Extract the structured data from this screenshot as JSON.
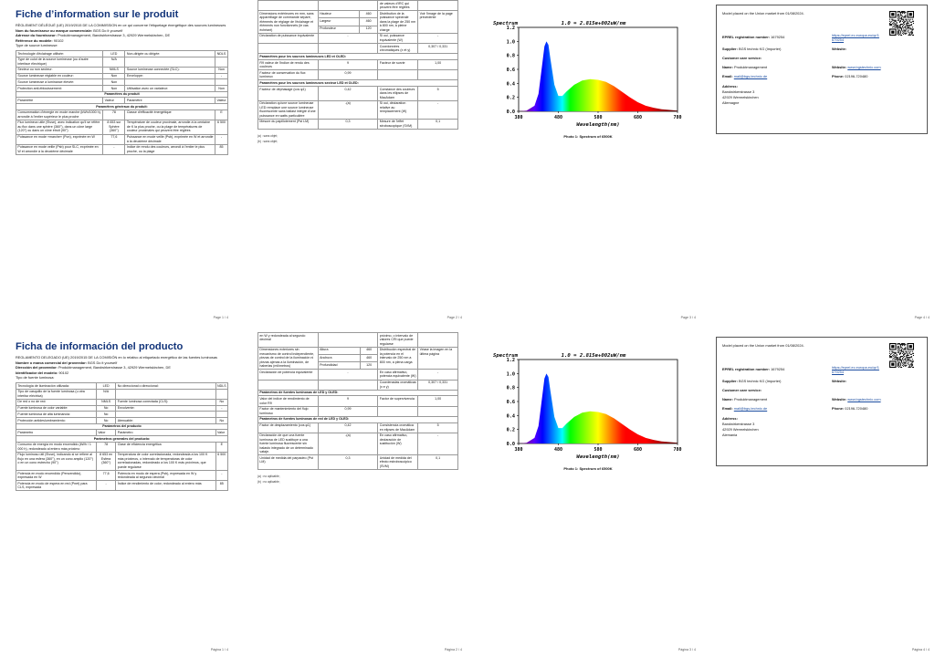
{
  "fr": {
    "p1": {
      "title": "Fiche d’information sur le produit",
      "regulation": "RÈGLEMENT DÉLÉGUÉ (UE) 2019/2015 DE LA COMMISSION en ce qui concerne l'étiquetage énergétique des sources lumineuses",
      "supplier_label": "Nom du fournisseur ou marque commerciale:",
      "supplier_value": "BGS Do it yourself",
      "address_label": "Adresse du fournisseur:",
      "address_value": "Produktmanagement, Bandwirkerstrasse 3, 42929 Wermelskirchen, DE",
      "model_label": "Référence du modèle:",
      "model_value": "90102",
      "type_heading": "Type de source lumineuse:",
      "rows_type": [
        [
          "Technologie d'éclairage utilisée:",
          "LED",
          "Non-dirigée ou dirigée:",
          "NDLS"
        ],
        [
          "Type de culot de la source lumineuse (ou d'autre interface électrique)",
          "N/A",
          "",
          ""
        ],
        [
          "Secteur ou non secteur:",
          "NMLS",
          "Source lumineuse connectée (SLC):",
          "Non"
        ],
        [
          "Source lumineuse réglable en couleur:",
          "Non",
          "Enveloppe:",
          "-"
        ],
        [
          "Source lumineuse à luminance élevée:",
          "Non",
          "",
          ""
        ],
        [
          "Protection anti-éblouissement:",
          "Non",
          "Utilisation avec un variateur:",
          "Non"
        ]
      ],
      "params_heading": "Paramètres du produit",
      "cols": [
        "Paramètre",
        "Valeur",
        "Paramètre",
        "Valeur"
      ],
      "general_heading": "Paramètres généraux du produit:",
      "rows_general": [
        [
          "Consommation d'énergie en mode marche (kWh/1000 h), arrondie à l'entier supérieur le plus proche",
          "78",
          "Classe d'efficacité énergétique",
          "E"
        ],
        [
          "Flux lumineux utile (Φuse), avec indication qu'il se réfère au flux dans une sphère (360°), dans un cône large (120°) ou dans un cône étroit (90°)",
          "8 653 sur Sphère (360°)",
          "Température de couleur proximale, arrondie à la centaine de K la plus proche, ou la plage de températures de couleur proximales qui peuvent être réglées",
          "6 500"
        ],
        [
          "Puissance en mode «marche» (Pon), exprimée en W",
          "77,6",
          "Puissance en mode veille (Psb), exprimée en W et arrondie à la deuxième décimale",
          "-"
        ],
        [
          "Puissance en mode veille (Psb) pour SLC, exprimée en W et arrondie à la deuxième décimale",
          "-",
          "Indice de rendu des couleurs, arrondi à l'entier le plus proche, ou la plage",
          "85"
        ]
      ],
      "page_no": "Page 1 / 4"
    },
    "p2": {
      "cont_text": "de valeurs d'IRC qui peuvent être réglées",
      "dim_label": "Dimensions extérieures en mm, sans appareillage de commande séparé, éléments de réglage de l'éclairage et éléments non fonctionnels (le cas échéant)",
      "dims": [
        [
          "Hauteur",
          "460"
        ],
        [
          "Largeur",
          "460"
        ],
        [
          "Profondeur",
          "120"
        ]
      ],
      "spec_label": "Distribution de la puissance spectrale dans la plage de 250 nm à 800 nm, à pleine charge",
      "spec_value": "Voir l'image de la page précédente",
      "rows_a": [
        [
          "Déclaration de puissance équivalente",
          "-",
          "Si oui, puissance équivalente (W)",
          "-"
        ],
        [
          "",
          "",
          "Coordonnées chromatiques (x et y)",
          "0,307 / 0,331"
        ]
      ],
      "led_heading": "Paramètres pour les sources lumineuses LED et OLED:",
      "rows_led": [
        [
          "R9 valeur de l'indice de rendu des couleurs",
          "9",
          "Facteur de survie",
          "1,00"
        ],
        [
          "Facteur de conservation du flux lumineux",
          "0,99",
          "",
          ""
        ]
      ],
      "mains_heading": "Paramètres pour les sources lumineuses secteur LED et OLED:",
      "rows_mains": [
        [
          "Facteur de déphasage (cos φ1)",
          "0,42",
          "Constance des couleurs dans les ellipses de MacAdam",
          "5"
        ],
        [
          "Déclaration qu'une source lumineuse LED remplace une source lumineuse fluorescente sans ballast intégré d'une puissance en watts particulière",
          "-(a)",
          "Si oui, déclaration relative au remplacement (W)",
          "-"
        ],
        [
          "Mesure du papillotement (Pst LM)",
          "0,3",
          "Mesure de l'effet stroboscopique (SVM)",
          "0,1"
        ]
      ],
      "notes": [
        "(a) : sans objet;",
        "(b) : sans objet;"
      ],
      "page_no": "Page 2 / 4"
    },
    "p3": {
      "page_no": "Page 3 / 4"
    },
    "p4": {
      "page_no": "Page 4 / 4",
      "country": "Allemagne"
    }
  },
  "es": {
    "p1": {
      "title": "Ficha de información del producto",
      "regulation": "REGLAMENTO DELEGADO (UE) 2019/2015 DE LA COMISIÓN en lo relativo al etiquetado energético de las fuentes luminosas",
      "supplier_label": "Nombre o marca comercial del proveedor:",
      "supplier_value": "BGS Do it yourself",
      "address_label": "Dirección del proveedor:",
      "address_value": "Produktmanagement, Bandwirkerstrasse 3, 42929 Wermelskirchen, DE",
      "model_label": "Identificador del modelo:",
      "model_value": "90102",
      "type_heading": "Tipo de fuente luminosa:",
      "rows_type": [
        [
          "Tecnología de iluminación utilizada:",
          "LED",
          "No direccional o direccional:",
          "NDLS"
        ],
        [
          "Tipo de casquillo de la fuente luminosa (u otra interfaz eléctrica)",
          "N/A",
          "",
          ""
        ],
        [
          "De red o no de red:",
          "NMLS",
          "Fuente luminosa conectada (CLS):",
          "No"
        ],
        [
          "Fuente luminosa de color variable:",
          "No",
          "Envolvente:",
          "-"
        ],
        [
          "Fuente luminosa de alta luminancia:",
          "No",
          "",
          ""
        ],
        [
          "Protección antideslumbramiento:",
          "No",
          "Atenuable:",
          "No"
        ]
      ],
      "params_heading": "Parámetros del producto",
      "cols": [
        "Parámetro",
        "Valor",
        "Parámetro",
        "Valor"
      ],
      "general_heading": "Parámetros generales del producto:",
      "rows_general": [
        [
          "Consumo de energía en modo encendido (kWh / 1 000 h), redondeado al entero más próximo",
          "78",
          "Clase de eficiencia energética",
          "E"
        ],
        [
          "Flujo luminoso útil (Φuse), indicando si se refiere al flujo en una esfera (360°), en un cono amplio (120°) o en un cono estrecho (90°)",
          "8 653 en Esfera (360°)",
          "Temperatura de color correlacionada, redondeada a los 100 K más próximos, o intervalo de temperaturas de color correlacionadas, redondeado a los 100 K más próximos, que puede regularse",
          "6 500"
        ],
        [
          "Potencia en modo encendido (Pencendido), expresada en W",
          "77,6",
          "Potencia en modo de espera (Psb), expresada en W y redondeada al segundo decimal",
          "-"
        ],
        [
          "Potencia en modo de espera en red (Pnet) para CLS, expresada",
          "-",
          "Índice de rendimiento de color, redondeado al entero más",
          "85"
        ]
      ],
      "page_no": "Página 1 / 4"
    },
    "p2": {
      "cont_left": "en W y redondeada al segundo decimal",
      "cont_text": "próximo, o intervalo de valores CRI que puede regularse",
      "dim_label": "Dimensiones exteriores sin mecanismo de control independiente, piezas de control de la iluminación ni piezas ajenas a la iluminación, de haberlas (milímetros)",
      "dims": [
        [
          "Altura",
          "460"
        ],
        [
          "Anchura",
          "460"
        ],
        [
          "Profundidad",
          "120"
        ]
      ],
      "spec_label": "Distribución espectral de la potencia en el intervalo de 250 nm a 800 nm, a plena carga",
      "spec_value": "Véase la imagen en la última página",
      "rows_a": [
        [
          "Declaración de potencia equivalente",
          "-",
          "En caso afirmativo, potencia equivalente (W)",
          "-"
        ],
        [
          "",
          "",
          "Coordenadas cromáticas (x e y)",
          "0,307 / 0,331"
        ]
      ],
      "led_heading": "Parámetros de fuentes luminosas de LED y OLED:",
      "rows_led": [
        [
          "Valor del índice de rendimiento de color R9",
          "9",
          "Factor de supervivencia",
          "1,00"
        ],
        [
          "Factor de mantenimiento del flujo luminoso",
          "0,99",
          "",
          ""
        ]
      ],
      "mains_heading": "Parámetros de fuentes luminosas de red de LED y OLED:",
      "rows_mains": [
        [
          "Factor de desplazamiento (cos φ1)",
          "0,42",
          "Consistencia cromática en elipses de MacAdam",
          "5"
        ],
        [
          "Declaración de que una fuente luminosa de LED sustituye a una fuente luminosa fluorescente sin balasto integrado de un determinado vataje.",
          "-(a)",
          "En caso afirmativo, declaración de sustitución (W)",
          "-"
        ],
        [
          "Unidad de medida del parpadeo (Pst LM)",
          "0,3",
          "Unidad de medida del efecto estroboscópico (SVM)",
          "0,1"
        ]
      ],
      "notes": [
        "(a) : no aplicable;",
        "(b) : no aplicable;"
      ],
      "page_no": "Página 2 / 4"
    },
    "p3": {
      "page_no": "Página 3 / 4"
    },
    "p4": {
      "page_no": "Página 4 / 4",
      "country": "Alemania"
    }
  },
  "spectrum": {
    "ylabel": "Spectrum",
    "xlabel": "Wavelength(nm)",
    "formula": "1.0 = 2.815e+002uW/nm",
    "caption": "Photo 1: Spectrum of 6500K"
  },
  "chart_data": {
    "type": "area",
    "title": "1.0 = 2.815e+002uW/nm",
    "xlabel": "Wavelength(nm)",
    "ylabel": "Spectrum",
    "xlim": [
      380,
      780
    ],
    "ylim": [
      0.0,
      1.2
    ],
    "x_ticks": [
      "380",
      "480",
      "580",
      "680",
      "780"
    ],
    "y_ticks": [
      "0.0",
      "0.2",
      "0.4",
      "0.6",
      "0.8",
      "1.0",
      "1.2"
    ],
    "x": [
      380,
      400,
      420,
      430,
      440,
      445,
      450,
      455,
      460,
      470,
      480,
      490,
      500,
      520,
      540,
      560,
      580,
      600,
      620,
      640,
      660,
      680,
      700,
      720,
      740,
      760,
      780
    ],
    "values": [
      0.0,
      0.01,
      0.08,
      0.25,
      0.7,
      0.93,
      1.0,
      0.95,
      0.75,
      0.38,
      0.22,
      0.22,
      0.28,
      0.38,
      0.44,
      0.46,
      0.45,
      0.42,
      0.36,
      0.28,
      0.2,
      0.13,
      0.08,
      0.05,
      0.03,
      0.02,
      0.01
    ]
  },
  "registration": {
    "market_note": "Model placed on the Union market from 01/08/2024.",
    "eprel_label": "EPREL registration number:",
    "eprel_value": "1679254",
    "eprel_link": "https://eprel.ec.europa.eu/qr/1679254",
    "supplier_label": "Supplier:",
    "supplier_value": "BGS technic KG (Importer)",
    "website_label": "Website:",
    "service_label": "Customer care service:",
    "name_label": "Name:",
    "name_value": "Produktmanagement",
    "website2_label": "Website:",
    "website2_value": "www.bgstechnic.com",
    "email_label": "Email:",
    "email_value": "mail@bgs-technic.de",
    "phone_label": "Phone:",
    "phone_value": "02196-720480",
    "address_label": "Address:",
    "address_l1": "Bandwirkerstrasse 3",
    "address_l2": "42929 Wermelskirchen"
  }
}
